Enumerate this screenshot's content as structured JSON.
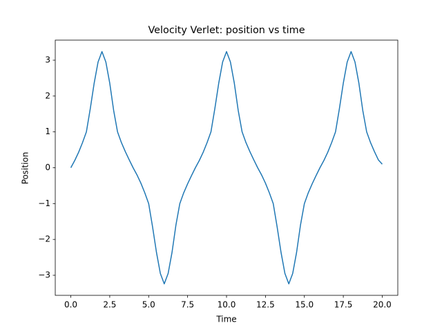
{
  "chart_data": {
    "type": "line",
    "title": "Velocity Verlet: position vs time",
    "xlabel": "Time",
    "ylabel": "Position",
    "color": "#1f77b4",
    "x": [
      0,
      0.25,
      0.5,
      0.75,
      1,
      1.25,
      1.5,
      1.75,
      2,
      2.25,
      2.5,
      2.75,
      3,
      3.25,
      3.5,
      3.75,
      4,
      4.25,
      4.5,
      4.75,
      5,
      5.25,
      5.5,
      5.75,
      6,
      6.25,
      6.5,
      6.75,
      7,
      7.25,
      7.5,
      7.75,
      8,
      8.25,
      8.5,
      8.75,
      9,
      9.25,
      9.5,
      9.75,
      10,
      10.25,
      10.5,
      10.75,
      11,
      11.25,
      11.5,
      11.75,
      12,
      12.25,
      12.5,
      12.75,
      13,
      13.25,
      13.5,
      13.75,
      14,
      14.25,
      14.5,
      14.75,
      15,
      15.25,
      15.5,
      15.75,
      16,
      16.25,
      16.5,
      16.75,
      17,
      17.25,
      17.5,
      17.75,
      18,
      18.25,
      18.5,
      18.75,
      19,
      19.25,
      19.5,
      19.75,
      20
    ],
    "values": [
      0,
      0.2,
      0.43,
      0.7,
      1.0,
      1.65,
      2.36,
      2.95,
      3.24,
      2.95,
      2.36,
      1.6,
      1.0,
      0.7,
      0.45,
      0.22,
      0.0,
      -0.2,
      -0.43,
      -0.7,
      -1.0,
      -1.65,
      -2.36,
      -2.95,
      -3.24,
      -2.95,
      -2.36,
      -1.6,
      -1.0,
      -0.7,
      -0.45,
      -0.22,
      0,
      0.2,
      0.43,
      0.7,
      1.0,
      1.65,
      2.36,
      2.95,
      3.24,
      2.95,
      2.36,
      1.6,
      1.0,
      0.7,
      0.45,
      0.22,
      0.0,
      -0.2,
      -0.43,
      -0.7,
      -1.0,
      -1.65,
      -2.36,
      -2.95,
      -3.24,
      -2.95,
      -2.36,
      -1.6,
      -1.0,
      -0.7,
      -0.45,
      -0.22,
      0,
      0.2,
      0.43,
      0.7,
      1.0,
      1.65,
      2.36,
      2.95,
      3.24,
      2.95,
      2.36,
      1.6,
      1.0,
      0.7,
      0.45,
      0.22,
      0.1
    ],
    "xlim": [
      -1,
      21
    ],
    "xticks": [
      {
        "value": 0,
        "label": "0.0"
      },
      {
        "value": 2.5,
        "label": "2.5"
      },
      {
        "value": 5,
        "label": "5.0"
      },
      {
        "value": 7.5,
        "label": "7.5"
      },
      {
        "value": 10,
        "label": "10.0"
      },
      {
        "value": 12.5,
        "label": "12.5"
      },
      {
        "value": 15,
        "label": "15.0"
      },
      {
        "value": 17.5,
        "label": "17.5"
      },
      {
        "value": 20,
        "label": "20.0"
      }
    ],
    "ylim": [
      -3.56,
      3.56
    ],
    "yticks": [
      {
        "value": -3,
        "label": "−3"
      },
      {
        "value": -2,
        "label": "−2"
      },
      {
        "value": -1,
        "label": "−1"
      },
      0,
      1,
      2,
      3
    ]
  }
}
